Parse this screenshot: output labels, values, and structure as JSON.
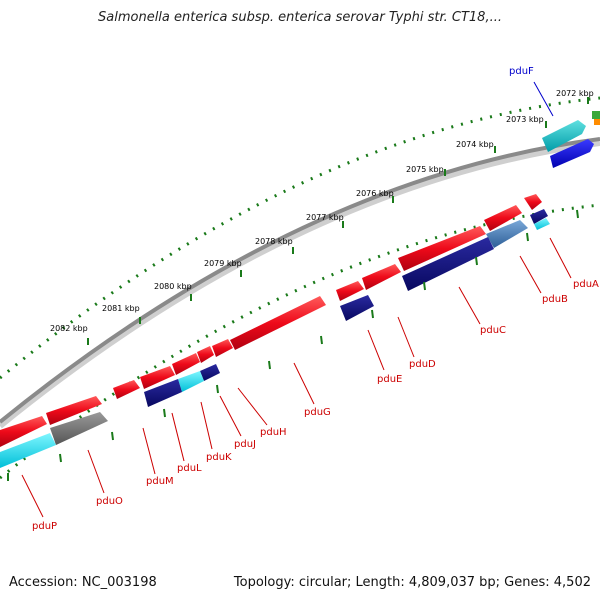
{
  "title": "Salmonella enterica subsp. enterica serovar Typhi str. CT18,...",
  "footer": {
    "accession": "Accession: NC_003198",
    "topology": "Topology: circular; Length: 4,809,037 bp; Genes: 4,502"
  },
  "ruler": [
    "2072 kbp",
    "2073 kbp",
    "2074 kbp",
    "2075 kbp",
    "2076 kbp",
    "2077 kbp",
    "2078 kbp",
    "2079 kbp",
    "2080 kbp",
    "2081 kbp",
    "2082 kbp"
  ],
  "genes": [
    "pduF",
    "pduA",
    "pduB",
    "pduC",
    "pduD",
    "pduE",
    "pduG",
    "pduH",
    "pduJ",
    "pduK",
    "pduL",
    "pduM",
    "pduO",
    "pduP"
  ],
  "colors": {
    "gene": "#e8001c",
    "gene_dark": "#10107a",
    "cyan": "#00d8e8",
    "steel": "#4a7fb8",
    "gray": "#6e6e6e",
    "blue": "#0000e0",
    "green_tick": "#1a7a1a",
    "backbone": "#8a8a8a"
  }
}
